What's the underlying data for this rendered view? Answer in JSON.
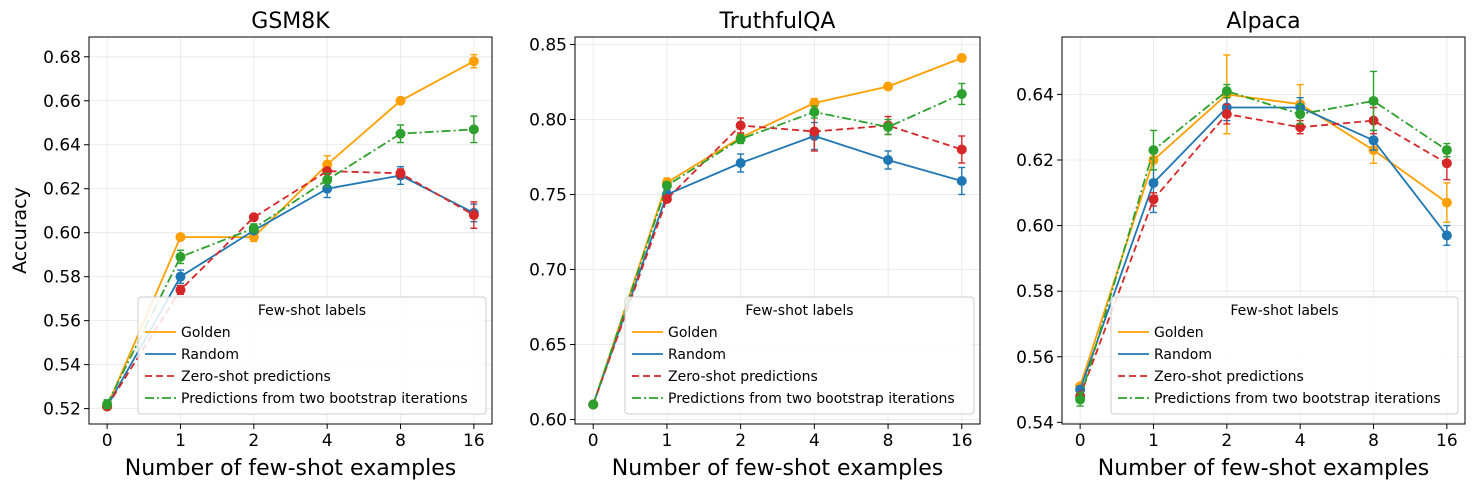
{
  "legend": {
    "title": "Few-shot labels",
    "entries": [
      {
        "name": "Golden",
        "color": "#ff9f00",
        "dash": "solid"
      },
      {
        "name": "Random",
        "color": "#1f77b4",
        "dash": "solid"
      },
      {
        "name": "Zero-shot predictions",
        "color": "#d62728",
        "dash": "dashed"
      },
      {
        "name": "Predictions from two bootstrap iterations",
        "color": "#2ca02c",
        "dash": "dashdot"
      }
    ]
  },
  "chart_data": [
    {
      "type": "line",
      "title": "GSM8K",
      "xlabel": "Number of few-shot examples",
      "ylabel": "Accuracy",
      "categories": [
        "0",
        "1",
        "2",
        "4",
        "8",
        "16"
      ],
      "ylim": [
        0.513,
        0.689
      ],
      "yticks": [
        "0.52",
        "0.54",
        "0.56",
        "0.58",
        "0.60",
        "0.62",
        "0.64",
        "0.66",
        "0.68"
      ],
      "grid": true,
      "legend_position": "lower-right",
      "series": [
        {
          "name": "Golden",
          "values": [
            0.521,
            0.598,
            0.598,
            0.631,
            0.66,
            0.678
          ],
          "errors": [
            0.001,
            0.001,
            0.002,
            0.004,
            0.001,
            0.003
          ]
        },
        {
          "name": "Random",
          "values": [
            0.521,
            0.58,
            0.601,
            0.62,
            0.626,
            0.609
          ],
          "errors": [
            0.001,
            0.003,
            0.001,
            0.004,
            0.004,
            0.004
          ]
        },
        {
          "name": "Zero-shot predictions",
          "values": [
            0.521,
            0.574,
            0.607,
            0.628,
            0.627,
            0.608
          ],
          "errors": [
            0.001,
            0.002,
            0.001,
            0.001,
            0.002,
            0.006
          ]
        },
        {
          "name": "Predictions from two bootstrap iterations",
          "values": [
            0.522,
            0.589,
            0.602,
            0.624,
            0.645,
            0.647
          ],
          "errors": [
            0.002,
            0.003,
            0.002,
            0.003,
            0.004,
            0.006
          ]
        }
      ]
    },
    {
      "type": "line",
      "title": "TruthfulQA",
      "xlabel": "Number of few-shot examples",
      "ylabel": "",
      "categories": [
        "0",
        "1",
        "2",
        "4",
        "8",
        "16"
      ],
      "ylim": [
        0.597,
        0.855
      ],
      "yticks": [
        "0.60",
        "0.65",
        "0.70",
        "0.75",
        "0.80",
        "0.85"
      ],
      "grid": true,
      "legend_position": "lower-right",
      "series": [
        {
          "name": "Golden",
          "values": [
            0.61,
            0.758,
            0.788,
            0.811,
            0.822,
            0.841
          ],
          "errors": [
            0.001,
            0.003,
            0.003,
            0.003,
            0.002,
            0.002
          ]
        },
        {
          "name": "Random",
          "values": [
            0.61,
            0.75,
            0.771,
            0.789,
            0.773,
            0.759
          ],
          "errors": [
            0.001,
            0.003,
            0.006,
            0.009,
            0.006,
            0.009
          ]
        },
        {
          "name": "Zero-shot predictions",
          "values": [
            0.61,
            0.747,
            0.796,
            0.792,
            0.796,
            0.78
          ],
          "errors": [
            0.001,
            0.002,
            0.005,
            0.013,
            0.006,
            0.009
          ]
        },
        {
          "name": "Predictions from two bootstrap iterations",
          "values": [
            0.61,
            0.756,
            0.787,
            0.805,
            0.795,
            0.817
          ],
          "errors": [
            0.001,
            0.002,
            0.003,
            0.004,
            0.005,
            0.007
          ]
        }
      ]
    },
    {
      "type": "line",
      "title": "Alpaca",
      "xlabel": "Number of few-shot examples",
      "ylabel": "",
      "categories": [
        "0",
        "1",
        "2",
        "4",
        "8",
        "16"
      ],
      "ylim": [
        0.5395,
        0.6575
      ],
      "yticks": [
        "0.54",
        "0.56",
        "0.58",
        "0.60",
        "0.62",
        "0.64"
      ],
      "grid": true,
      "legend_position": "lower-right",
      "series": [
        {
          "name": "Golden",
          "values": [
            0.551,
            0.62,
            0.64,
            0.637,
            0.623,
            0.607
          ],
          "errors": [
            0.001,
            0.003,
            0.012,
            0.006,
            0.004,
            0.006
          ]
        },
        {
          "name": "Random",
          "values": [
            0.55,
            0.613,
            0.636,
            0.636,
            0.626,
            0.597
          ],
          "errors": [
            0.001,
            0.009,
            0.004,
            0.003,
            0.003,
            0.003
          ]
        },
        {
          "name": "Zero-shot predictions",
          "values": [
            0.548,
            0.608,
            0.634,
            0.63,
            0.632,
            0.619
          ],
          "errors": [
            0.001,
            0.002,
            0.003,
            0.002,
            0.004,
            0.005
          ]
        },
        {
          "name": "Predictions from two bootstrap iterations",
          "values": [
            0.547,
            0.623,
            0.641,
            0.634,
            0.638,
            0.623
          ],
          "errors": [
            0.002,
            0.006,
            0.002,
            0.003,
            0.009,
            0.002
          ]
        }
      ]
    }
  ]
}
